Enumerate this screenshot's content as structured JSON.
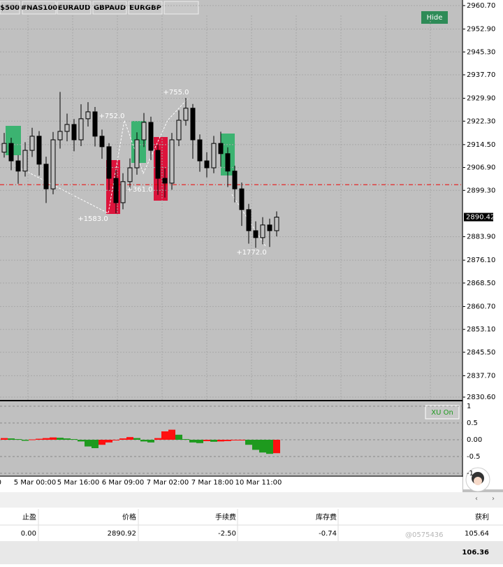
{
  "tabs": [
    "$500",
    "#NAS100",
    "EURAUD",
    "GBPAUD",
    "EURGBP"
  ],
  "buttons": {
    "hide": "Hide",
    "indicator": "XU On"
  },
  "chart_data": [
    {
      "type": "candlestick",
      "open": [
        2912.0,
        2914.9,
        2909.1,
        2905.7,
        2912.6,
        2917.3,
        2908.0,
        2899.8,
        2916.1,
        2918.9,
        2921.2,
        2916.1,
        2923.1,
        2925.4,
        2917.3,
        2913.8,
        2903.3,
        2895.2,
        2902.2,
        2906.8,
        2916.1,
        2921.9,
        2912.6,
        2903.3,
        2901.7,
        2916.1,
        2922.6,
        2926.6,
        2916.1,
        2909.1,
        2906.8,
        2914.9,
        2911.5,
        2905.7,
        2899.8,
        2892.9,
        2885.9,
        2883.6,
        2887.8,
        2885.9
      ],
      "high": [
        2918.4,
        2916.8,
        2911.0,
        2915.3,
        2920.1,
        2919.0,
        2910.5,
        2918.7,
        2932.0,
        2924.8,
        2923.0,
        2927.9,
        2928.6,
        2927.0,
        2919.5,
        2915.0,
        2906.1,
        2905.0,
        2909.9,
        2918.6,
        2925.0,
        2923.8,
        2914.5,
        2906.6,
        2918.4,
        2925.9,
        2930.0,
        2928.0,
        2917.9,
        2912.0,
        2917.4,
        2918.8,
        2913.6,
        2907.5,
        2901.9,
        2894.8,
        2889.0,
        2890.4,
        2889.9,
        2892.3
      ],
      "low": [
        2910.2,
        2906.0,
        2901.5,
        2903.9,
        2910.4,
        2904.2,
        2895.1,
        2898.0,
        2913.2,
        2915.6,
        2912.3,
        2914.0,
        2920.5,
        2913.9,
        2909.8,
        2899.4,
        2891.7,
        2893.0,
        2899.6,
        2904.5,
        2913.7,
        2909.4,
        2897.8,
        2896.9,
        2899.5,
        2914.0,
        2920.8,
        2909.8,
        2905.5,
        2903.6,
        2905.0,
        2907.2,
        2900.4,
        2895.3,
        2887.5,
        2881.6,
        2880.2,
        2881.4,
        2880.5,
        2884.0
      ],
      "close": [
        2914.9,
        2909.1,
        2905.7,
        2912.6,
        2917.3,
        2908.0,
        2899.8,
        2916.1,
        2918.9,
        2921.2,
        2916.1,
        2923.1,
        2925.4,
        2917.3,
        2913.8,
        2903.3,
        2895.2,
        2902.2,
        2906.8,
        2916.1,
        2921.9,
        2912.6,
        2903.3,
        2901.7,
        2916.1,
        2922.6,
        2926.6,
        2916.1,
        2909.1,
        2906.8,
        2914.9,
        2911.5,
        2905.7,
        2899.8,
        2892.9,
        2885.9,
        2883.6,
        2887.8,
        2885.9,
        2890.4
      ],
      "ylim": [
        2829.67,
        2962.56
      ],
      "yticks": [
        {
          "value": 2960.7,
          "label": "2960.70"
        },
        {
          "value": 2952.9,
          "label": "2952.90"
        },
        {
          "value": 2945.3,
          "label": "2945.30"
        },
        {
          "value": 2937.7,
          "label": "2937.70"
        },
        {
          "value": 2929.9,
          "label": "2929.90"
        },
        {
          "value": 2922.3,
          "label": "2922.30"
        },
        {
          "value": 2914.5,
          "label": "2914.50"
        },
        {
          "value": 2906.9,
          "label": "2906.90"
        },
        {
          "value": 2899.3,
          "label": "2899.30"
        },
        {
          "value": 2883.9,
          "label": "2883.90"
        },
        {
          "value": 2876.1,
          "label": "2876.10"
        },
        {
          "value": 2868.5,
          "label": "2868.50"
        },
        {
          "value": 2860.7,
          "label": "2860.70"
        },
        {
          "value": 2853.1,
          "label": "2853.10"
        },
        {
          "value": 2845.5,
          "label": "2845.50"
        },
        {
          "value": 2837.7,
          "label": "2837.70"
        },
        {
          "value": 2830.6,
          "label": "2830.60"
        }
      ],
      "current_price": {
        "value": 2890.42,
        "label": "2890.42"
      },
      "reference_line": 2901.2,
      "annotations": [
        "+752.0",
        "+755.0",
        "+361.0",
        "+1583.0",
        "+1772.0"
      ],
      "x_labels": [
        "00",
        "5 Mar 00:00",
        "5 Mar 16:00",
        "6 Mar 09:00",
        "7 Mar 02:00",
        "7 Mar 18:00",
        "10 Mar 11:00"
      ]
    },
    {
      "type": "bar",
      "values": [
        0.05,
        0.04,
        0.02,
        -0.03,
        0.01,
        0.03,
        0.05,
        0.07,
        0.06,
        0.04,
        0.02,
        -0.05,
        -0.2,
        -0.25,
        -0.15,
        -0.08,
        0.0,
        0.04,
        0.08,
        0.05,
        -0.05,
        -0.08,
        0.05,
        0.25,
        0.3,
        0.15,
        0.02,
        -0.08,
        -0.1,
        -0.04,
        -0.06,
        -0.05,
        -0.04,
        -0.02,
        -0.01,
        -0.15,
        -0.3,
        -0.38,
        -0.42,
        -0.4
      ],
      "rise_color": "#ff1010",
      "fall_color": "#1e9a1e",
      "ylim": [
        -1.083,
        1.104
      ],
      "yticks": [
        1,
        0.5,
        {
          "value": 0,
          "label": "0.00"
        },
        -0.5,
        -1
      ]
    }
  ],
  "table": {
    "headers": [
      "止盈",
      "价格",
      "手续费",
      "库存费",
      "获利"
    ],
    "row": [
      "0.00",
      "2890.92",
      "-2.50",
      "-0.74",
      "105.64"
    ],
    "total": "106.36"
  },
  "watermark": "@0575436"
}
